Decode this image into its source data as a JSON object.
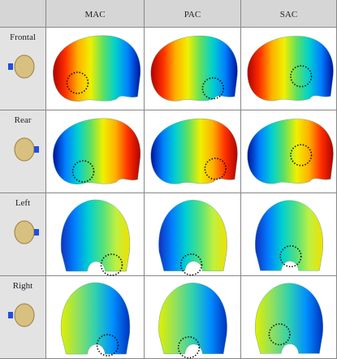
{
  "table": {
    "columns": [
      "MAC",
      "PAC",
      "SAC"
    ],
    "rows": [
      "Frontal",
      "Rear",
      "Left",
      "Right"
    ]
  }
}
